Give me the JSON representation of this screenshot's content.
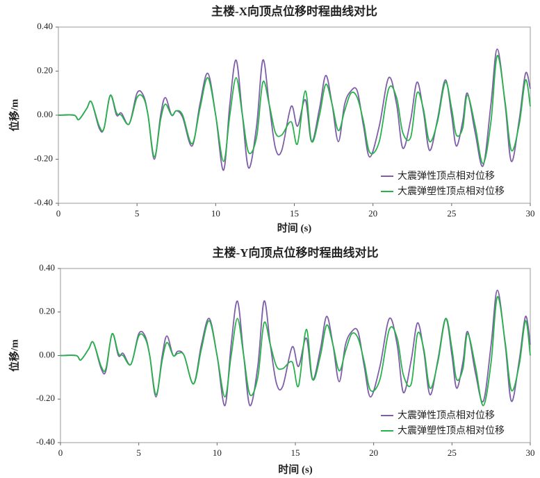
{
  "chart_data": [
    {
      "type": "line",
      "title": "主楼-X向顶点位移时程曲线对比",
      "x_label": "时间 (s)",
      "y_label": "位移/m",
      "x": [
        0,
        1,
        1.3,
        1.8,
        2.1,
        2.6,
        2.9,
        3.3,
        3.7,
        4.0,
        4.5,
        5.0,
        5.4,
        5.7,
        6.1,
        6.5,
        6.8,
        7.2,
        7.5,
        7.9,
        8.5,
        9.0,
        9.5,
        10.0,
        10.5,
        10.9,
        11.3,
        11.7,
        12.1,
        12.6,
        13.0,
        13.4,
        13.8,
        14.2,
        14.8,
        15.2,
        15.7,
        16.1,
        16.6,
        17.0,
        17.4,
        17.8,
        18.2,
        18.6,
        19.0,
        19.4,
        19.8,
        20.4,
        21.0,
        21.5,
        21.9,
        22.4,
        22.8,
        23.2,
        23.6,
        24.1,
        24.6,
        25.0,
        25.3,
        25.7,
        26.0,
        26.5,
        27.0,
        27.5,
        27.9,
        28.4,
        28.8,
        29.3,
        29.7,
        30
      ],
      "series": [
        {
          "name": "大震弹性顶点相对位移",
          "color": "#7e5ea8",
          "values": [
            0,
            0,
            -0.02,
            0.03,
            0.06,
            -0.06,
            -0.06,
            0.09,
            0.0,
            0.01,
            -0.04,
            0.1,
            0.09,
            0.0,
            -0.2,
            0.0,
            0.08,
            0.0,
            0.02,
            -0.01,
            -0.14,
            0.05,
            0.19,
            0.0,
            -0.25,
            0.05,
            0.25,
            0.0,
            -0.24,
            -0.05,
            0.25,
            0.05,
            -0.15,
            -0.16,
            0.04,
            -0.05,
            0.07,
            -0.12,
            0.03,
            0.18,
            0.05,
            -0.12,
            0.05,
            0.11,
            0.11,
            -0.05,
            -0.19,
            -0.05,
            0.17,
            0.05,
            -0.15,
            -0.02,
            0.15,
            0.02,
            -0.16,
            -0.02,
            0.16,
            0.0,
            -0.14,
            -0.03,
            0.1,
            -0.08,
            -0.23,
            0.05,
            0.3,
            0.05,
            -0.21,
            -0.02,
            0.19,
            0.12
          ]
        },
        {
          "name": "大震弹塑性顶点相对位移",
          "color": "#27b24a",
          "values": [
            0,
            0,
            -0.02,
            0.03,
            0.06,
            -0.05,
            -0.06,
            0.09,
            0.01,
            0.0,
            -0.04,
            0.08,
            0.08,
            0.0,
            -0.19,
            -0.02,
            0.05,
            0.0,
            0.02,
            0.0,
            -0.13,
            0.03,
            0.17,
            0.0,
            -0.21,
            0.0,
            0.17,
            0.0,
            -0.17,
            -0.1,
            0.15,
            0.05,
            -0.08,
            -0.09,
            -0.03,
            -0.13,
            0.11,
            -0.12,
            0.0,
            0.14,
            0.05,
            -0.07,
            0.02,
            0.1,
            0.08,
            -0.03,
            -0.17,
            -0.12,
            0.12,
            0.08,
            -0.08,
            -0.1,
            0.1,
            0.03,
            -0.12,
            -0.03,
            0.15,
            0.03,
            -0.09,
            -0.06,
            0.09,
            -0.05,
            -0.22,
            -0.03,
            0.27,
            0.06,
            -0.16,
            -0.04,
            0.16,
            0.04
          ]
        }
      ],
      "xlim": [
        0,
        30
      ],
      "xticks": [
        0,
        5,
        10,
        15,
        20,
        25,
        30
      ],
      "ylim": [
        -0.4,
        0.4
      ],
      "yticks": [
        {
          "value": -0.4,
          "label": "-0.40"
        },
        {
          "value": -0.2,
          "label": "-0.20"
        },
        {
          "value": 0,
          "label": "0.00"
        },
        {
          "value": 0.2,
          "label": "0.20"
        },
        {
          "value": 0.4,
          "label": "0.40"
        }
      ],
      "grid": false,
      "legend": "lower right"
    },
    {
      "type": "line",
      "title": "主楼-Y向顶点位移时程曲线对比",
      "x_label": "时间 (s)",
      "y_label": "位移/m",
      "x": [
        0,
        1,
        1.3,
        1.8,
        2.1,
        2.6,
        2.9,
        3.3,
        3.7,
        4.0,
        4.5,
        5.0,
        5.4,
        5.7,
        6.1,
        6.5,
        6.8,
        7.2,
        7.5,
        7.9,
        8.5,
        9.0,
        9.5,
        10.0,
        10.5,
        10.9,
        11.3,
        11.7,
        12.1,
        12.6,
        13.0,
        13.4,
        13.8,
        14.2,
        14.8,
        15.2,
        15.7,
        16.1,
        16.6,
        17.0,
        17.4,
        17.8,
        18.2,
        18.6,
        19.0,
        19.4,
        19.8,
        20.4,
        21.0,
        21.5,
        21.9,
        22.4,
        22.8,
        23.2,
        23.6,
        24.1,
        24.6,
        25.0,
        25.3,
        25.7,
        26.0,
        26.5,
        27.0,
        27.5,
        27.9,
        28.4,
        28.8,
        29.3,
        29.7,
        30
      ],
      "series": [
        {
          "name": "大震弹性顶点相对位移",
          "color": "#7e5ea8",
          "values": [
            0,
            0,
            -0.02,
            0.03,
            0.06,
            -0.06,
            -0.07,
            0.1,
            0.0,
            0.01,
            -0.04,
            0.1,
            0.09,
            0.0,
            -0.19,
            0.0,
            0.09,
            0.0,
            0.02,
            0.0,
            -0.13,
            0.05,
            0.17,
            0.0,
            -0.23,
            0.05,
            0.25,
            0.0,
            -0.23,
            -0.05,
            0.25,
            0.05,
            -0.13,
            -0.14,
            0.04,
            -0.05,
            0.08,
            -0.11,
            0.03,
            0.18,
            0.05,
            -0.12,
            0.05,
            0.11,
            0.11,
            -0.05,
            -0.19,
            -0.05,
            0.17,
            0.05,
            -0.17,
            -0.02,
            0.15,
            0.02,
            -0.18,
            -0.02,
            0.17,
            0.0,
            -0.15,
            -0.03,
            0.11,
            -0.08,
            -0.21,
            0.05,
            0.3,
            0.05,
            -0.21,
            -0.02,
            0.18,
            0.05
          ]
        },
        {
          "name": "大震弹塑性顶点相对位移",
          "color": "#27b24a",
          "values": [
            0,
            0,
            -0.02,
            0.03,
            0.06,
            -0.05,
            -0.06,
            0.1,
            0.01,
            0.0,
            -0.04,
            0.09,
            0.08,
            0.0,
            -0.18,
            -0.02,
            0.06,
            0.0,
            0.01,
            0.0,
            -0.13,
            0.03,
            0.16,
            0.0,
            -0.19,
            0.0,
            0.17,
            0.0,
            -0.18,
            -0.1,
            0.15,
            0.05,
            -0.05,
            -0.06,
            -0.03,
            -0.14,
            0.12,
            -0.11,
            0.0,
            0.14,
            0.05,
            -0.07,
            0.02,
            0.1,
            0.08,
            -0.03,
            -0.16,
            -0.11,
            0.12,
            0.08,
            -0.09,
            -0.13,
            0.1,
            0.03,
            -0.15,
            -0.03,
            0.17,
            0.03,
            -0.11,
            -0.06,
            0.1,
            -0.05,
            -0.23,
            -0.03,
            0.27,
            0.06,
            -0.16,
            -0.04,
            0.16,
            0.0
          ]
        }
      ],
      "xlim": [
        0,
        30
      ],
      "xticks": [
        0,
        5,
        10,
        15,
        20,
        25,
        30
      ],
      "ylim": [
        -0.4,
        0.4
      ],
      "yticks": [
        {
          "value": -0.4,
          "label": "-0.40"
        },
        {
          "value": -0.2,
          "label": "-0.20"
        },
        {
          "value": 0,
          "label": "0.00"
        },
        {
          "value": 0.2,
          "label": "0.20"
        },
        {
          "value": 0.4,
          "label": "0.40"
        }
      ],
      "grid": false,
      "legend": "lower right"
    }
  ]
}
